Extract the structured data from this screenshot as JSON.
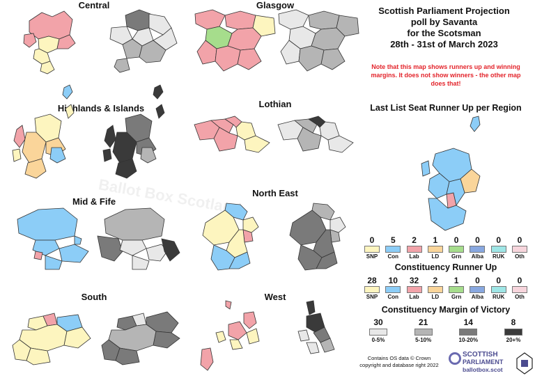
{
  "header": {
    "line1": "Scottish Parliament Projection",
    "line2": "poll by Savanta",
    "line3": "for the Scotsman",
    "line4": "28th - 31st of March 2023"
  },
  "note": "Note that this map shows runners up and winning margins. It does not show winners - the other map does that!",
  "watermark": "Ballot Box Scotland",
  "regions": {
    "central": "Central",
    "glasgow": "Glasgow",
    "highlands": "Highlands & Islands",
    "lothian": "Lothian",
    "midfife": "Mid & Fife",
    "northeast": "North East",
    "south": "South",
    "west": "West"
  },
  "list_runner_up_heading": "Last List Seat Runner Up per Region",
  "list_runner_up": [
    {
      "value": "0",
      "party": "SNP",
      "color": "#fdf5bf"
    },
    {
      "value": "5",
      "party": "Con",
      "color": "#8ccdf7"
    },
    {
      "value": "2",
      "party": "Lab",
      "color": "#f2a3a9"
    },
    {
      "value": "1",
      "party": "LD",
      "color": "#fad59a"
    },
    {
      "value": "0",
      "party": "Grn",
      "color": "#a6dd8c"
    },
    {
      "value": "0",
      "party": "Alba",
      "color": "#88a8e0"
    },
    {
      "value": "0",
      "party": "RUK",
      "color": "#9ee6e6"
    },
    {
      "value": "0",
      "party": "Oth",
      "color": "#f7d5dc"
    }
  ],
  "constituency_runner_up_heading": "Constituency Runner Up",
  "constituency_runner_up": [
    {
      "value": "28",
      "party": "SNP",
      "color": "#fdf5bf"
    },
    {
      "value": "10",
      "party": "Con",
      "color": "#8ccdf7"
    },
    {
      "value": "32",
      "party": "Lab",
      "color": "#f2a3a9"
    },
    {
      "value": "2",
      "party": "LD",
      "color": "#fad59a"
    },
    {
      "value": "1",
      "party": "Grn",
      "color": "#a6dd8c"
    },
    {
      "value": "0",
      "party": "Alba",
      "color": "#88a8e0"
    },
    {
      "value": "0",
      "party": "RUK",
      "color": "#9ee6e6"
    },
    {
      "value": "0",
      "party": "Oth",
      "color": "#f7d5dc"
    }
  ],
  "margin_heading": "Constituency Margin of Victory",
  "margin": [
    {
      "value": "30",
      "range": "0-5%",
      "color": "#e8e8e8"
    },
    {
      "value": "21",
      "range": "5-10%",
      "color": "#b5b5b5"
    },
    {
      "value": "14",
      "range": "10-20%",
      "color": "#7a7a7a"
    },
    {
      "value": "8",
      "range": "20+%",
      "color": "#3a3a3a"
    }
  ],
  "credit_line1": "Contains OS data © Crown",
  "credit_line2": "copyright and database right 2022",
  "logo": {
    "line1": "SCOTTISH",
    "line2": "PARLIAMENT",
    "line3": "ballotbox.scot"
  }
}
